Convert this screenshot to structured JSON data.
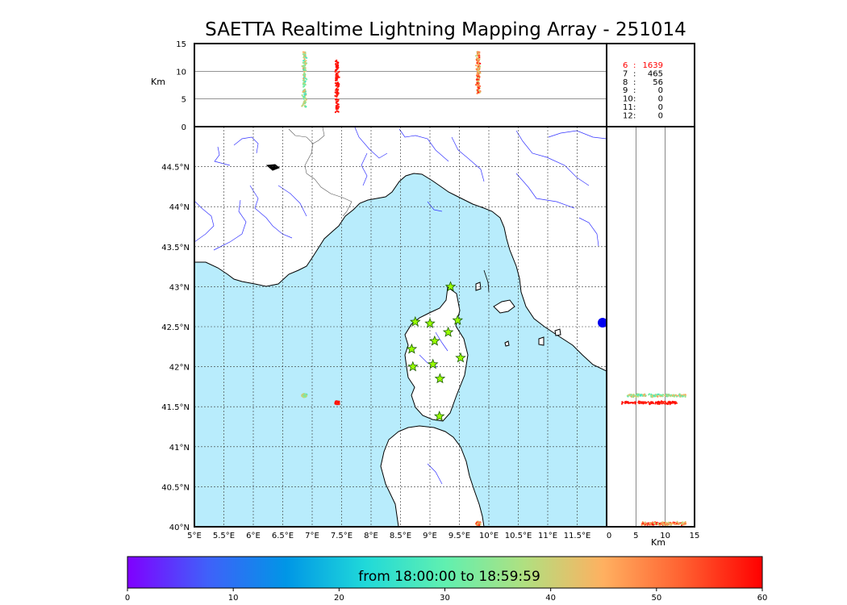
{
  "title": "SAETTA Realtime Lightning Mapping Array - 251014",
  "altitude_axis": {
    "label": "Km",
    "ticks": [
      "15",
      "10",
      "5",
      "0"
    ],
    "values": [
      15,
      10,
      5,
      0
    ],
    "range": [
      0,
      15
    ]
  },
  "station_counts": [
    {
      "stations": "6",
      "count": "1639",
      "color": "#ff0000"
    },
    {
      "stations": "7",
      "count": "465",
      "color": "#000000"
    },
    {
      "stations": "8",
      "count": "56",
      "color": "#000000"
    },
    {
      "stations": "9",
      "count": "0",
      "color": "#000000"
    },
    {
      "stations": "10",
      "count": "0",
      "color": "#000000"
    },
    {
      "stations": "11",
      "count": "0",
      "color": "#000000"
    },
    {
      "stations": "12",
      "count": "0",
      "color": "#000000"
    }
  ],
  "map": {
    "lon_range": [
      5,
      12
    ],
    "lat_range": [
      40,
      45
    ],
    "lon_ticks": [
      "5°E",
      "5.5°E",
      "6°E",
      "6.5°E",
      "7°E",
      "7.5°E",
      "8°E",
      "8.5°E",
      "9°E",
      "9.5°E",
      "10°E",
      "10.5°E",
      "11°E",
      "11.5°E"
    ],
    "lon_values": [
      5,
      5.5,
      6,
      6.5,
      7,
      7.5,
      8,
      8.5,
      9,
      9.5,
      10,
      10.5,
      11,
      11.5
    ],
    "lat_ticks": [
      "40°N",
      "40.5°N",
      "41°N",
      "41.5°N",
      "42°N",
      "42.5°N",
      "43°N",
      "43.5°N",
      "44°N",
      "44.5°N"
    ],
    "lat_values": [
      40,
      40.5,
      41,
      41.5,
      42,
      42.5,
      43,
      43.5,
      44,
      44.5
    ],
    "sea_color": "#b8ecfc",
    "land_color": "#ffffff",
    "coast_color": "#000000",
    "river_color": "#3333ff",
    "border_color": "#555555",
    "grid": "dotted",
    "stations": [
      {
        "lon": 9.35,
        "lat": 43.0
      },
      {
        "lon": 8.75,
        "lat": 42.56
      },
      {
        "lon": 9.0,
        "lat": 42.54
      },
      {
        "lon": 9.47,
        "lat": 42.58
      },
      {
        "lon": 9.08,
        "lat": 42.32
      },
      {
        "lon": 9.31,
        "lat": 42.43
      },
      {
        "lon": 8.69,
        "lat": 42.22
      },
      {
        "lon": 9.52,
        "lat": 42.11
      },
      {
        "lon": 8.71,
        "lat": 42.0
      },
      {
        "lon": 9.05,
        "lat": 42.03
      },
      {
        "lon": 9.17,
        "lat": 41.85
      },
      {
        "lon": 9.16,
        "lat": 41.38
      }
    ],
    "station_color": "#99ff00"
  },
  "side_axis": {
    "label": "Km",
    "ticks": [
      "0",
      "5",
      "10",
      "15"
    ],
    "values": [
      0,
      5,
      10,
      15
    ],
    "range": [
      0,
      15
    ]
  },
  "colorbar": {
    "label": "from 18:00:00 to 18:59:59",
    "ticks": [
      "0",
      "10",
      "20",
      "30",
      "40",
      "50",
      "60"
    ],
    "values": [
      0,
      10,
      20,
      30,
      40,
      50,
      60
    ],
    "range": [
      0,
      60
    ],
    "colors": [
      "#8000ff",
      "#4060fa",
      "#0096e6",
      "#20d9d9",
      "#60f0b0",
      "#b0e080",
      "#ffb060",
      "#ff6030",
      "#ff0000"
    ]
  },
  "chart_data": {
    "type": "scatter",
    "title": "SAETTA Realtime Lightning Mapping Array - 251014",
    "x_range": [
      5,
      12
    ],
    "y_range": [
      40,
      45
    ],
    "z_range_km": [
      0,
      15
    ],
    "color_range_minutes": [
      0,
      60
    ],
    "clusters": [
      {
        "lon": 6.87,
        "lat": 41.64,
        "alt_min": 3.5,
        "alt_max": 13.5,
        "time_min": 25,
        "time_max": 50,
        "n": 150
      },
      {
        "lon": 7.42,
        "lat": 41.55,
        "alt_min": 2.5,
        "alt_max": 12,
        "time_min": 56,
        "time_max": 60,
        "n": 130
      },
      {
        "lon": 9.82,
        "lat": 40.04,
        "alt_min": 6,
        "alt_max": 13.5,
        "time_min": 38,
        "time_max": 60,
        "n": 170
      }
    ]
  }
}
